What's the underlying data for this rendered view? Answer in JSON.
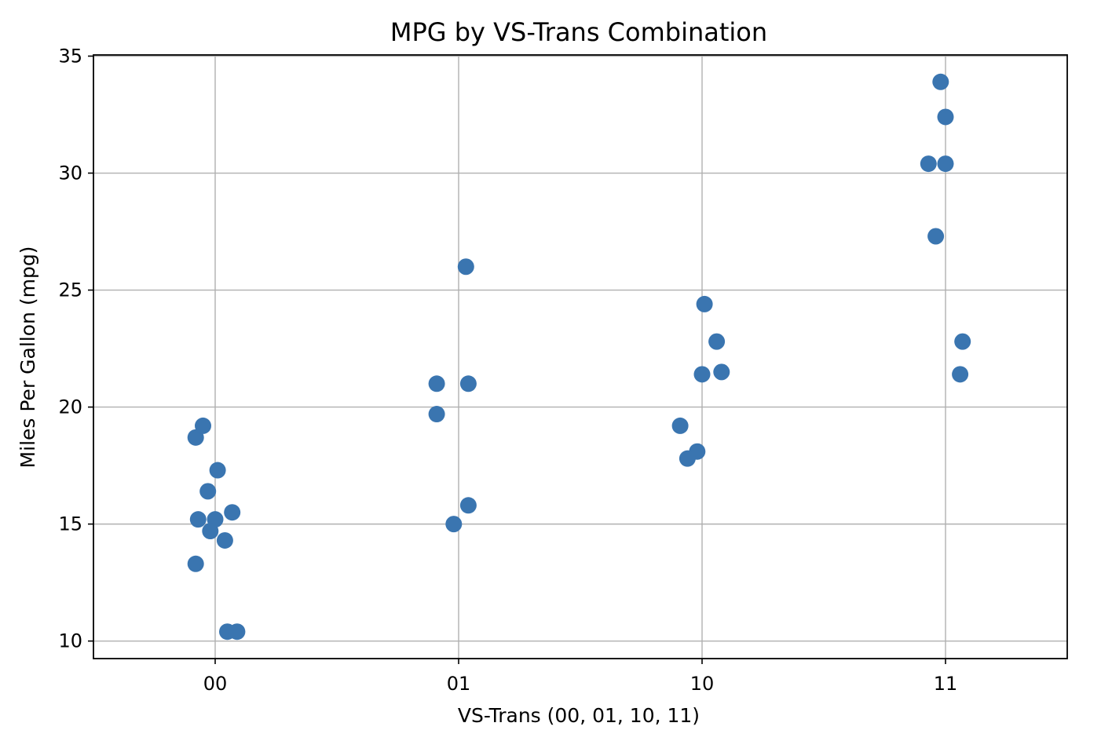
{
  "chart_data": {
    "type": "scatter",
    "title": "MPG by VS-Trans Combination",
    "xlabel": "VS-Trans (00, 01, 10, 11)",
    "ylabel": "Miles Per Gallon (mpg)",
    "categories": [
      "00",
      "01",
      "10",
      "11"
    ],
    "xlim": [
      -0.5,
      3.5
    ],
    "ylim": [
      9.25,
      35.05
    ],
    "yticks": [
      10,
      15,
      20,
      25,
      30,
      35
    ],
    "grid": true,
    "marker_color": "#3a75b0",
    "points": [
      {
        "x": -0.08,
        "y": 18.7
      },
      {
        "x": -0.05,
        "y": 19.2
      },
      {
        "x": 0.01,
        "y": 17.3
      },
      {
        "x": -0.03,
        "y": 16.4
      },
      {
        "x": -0.07,
        "y": 15.2
      },
      {
        "x": 0.0,
        "y": 15.2
      },
      {
        "x": -0.02,
        "y": 14.7
      },
      {
        "x": 0.07,
        "y": 15.5
      },
      {
        "x": 0.04,
        "y": 14.3
      },
      {
        "x": -0.08,
        "y": 13.3
      },
      {
        "x": 0.05,
        "y": 10.4
      },
      {
        "x": 0.09,
        "y": 10.4
      },
      {
        "x": 1.03,
        "y": 26.0
      },
      {
        "x": 0.91,
        "y": 21.0
      },
      {
        "x": 1.04,
        "y": 21.0
      },
      {
        "x": 0.91,
        "y": 19.7
      },
      {
        "x": 1.04,
        "y": 15.8
      },
      {
        "x": 0.98,
        "y": 15.0
      },
      {
        "x": 2.01,
        "y": 24.4
      },
      {
        "x": 2.06,
        "y": 22.8
      },
      {
        "x": 2.0,
        "y": 21.4
      },
      {
        "x": 2.08,
        "y": 21.5
      },
      {
        "x": 1.91,
        "y": 19.2
      },
      {
        "x": 1.98,
        "y": 18.1
      },
      {
        "x": 1.94,
        "y": 17.8
      },
      {
        "x": 2.98,
        "y": 33.9
      },
      {
        "x": 3.0,
        "y": 32.4
      },
      {
        "x": 2.93,
        "y": 30.4
      },
      {
        "x": 3.0,
        "y": 30.4
      },
      {
        "x": 2.96,
        "y": 27.3
      },
      {
        "x": 3.07,
        "y": 22.8
      },
      {
        "x": 3.06,
        "y": 21.4
      }
    ]
  }
}
